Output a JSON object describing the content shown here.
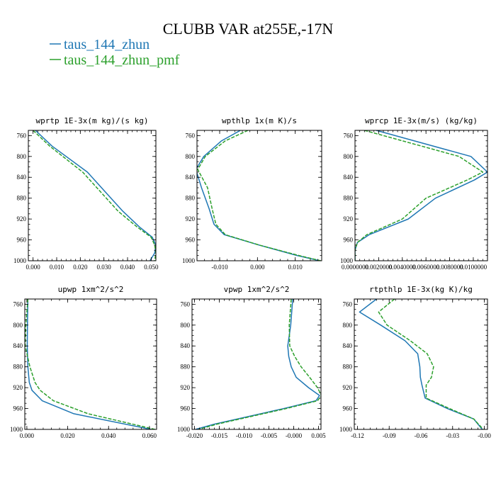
{
  "figure": {
    "title": "CLUBB VAR at255E,-17N",
    "legend": [
      {
        "name": "taus_144_zhun",
        "color": "#1f77b4",
        "dash": "solid"
      },
      {
        "name": "taus_144_zhun_pmf",
        "color": "#2ca02c",
        "dash": "dashed"
      }
    ]
  },
  "chart_data": [
    {
      "type": "line",
      "title": "wprtp  1E-3x(m kg)/(s kg)",
      "xlim": [
        -0.002,
        0.052
      ],
      "ylim": [
        1000,
        750
      ],
      "xticks": [
        0.0,
        0.01,
        0.02,
        0.03,
        0.04,
        0.05
      ],
      "xtick_labels": [
        "0.000",
        "0.010",
        "0.020",
        "0.030",
        "0.040",
        "0.050"
      ],
      "yticks": [
        760,
        800,
        840,
        880,
        920,
        960,
        1000
      ],
      "y": [
        750,
        780,
        830,
        870,
        905,
        935,
        955,
        970,
        985,
        1000
      ],
      "series": [
        {
          "name": "taus_144_zhun",
          "values": [
            0.001,
            0.008,
            0.023,
            0.031,
            0.038,
            0.045,
            0.0505,
            0.052,
            0.0515,
            0.0495
          ]
        },
        {
          "name": "taus_144_zhun_pmf",
          "values": [
            0.0,
            0.007,
            0.021,
            0.029,
            0.036,
            0.044,
            0.05,
            0.0515,
            0.052,
            0.0515
          ]
        }
      ]
    },
    {
      "type": "line",
      "title": "wpthlp  1x(m K)/s",
      "xlim": [
        -0.016,
        0.017
      ],
      "ylim": [
        1000,
        750
      ],
      "xticks": [
        -0.01,
        0.0,
        0.01
      ],
      "xtick_labels": [
        "-0.010",
        "0.000",
        "0.010"
      ],
      "yticks": [
        760,
        800,
        840,
        880,
        920,
        960,
        1000
      ],
      "y": [
        750,
        770,
        800,
        825,
        860,
        900,
        930,
        950,
        970,
        990,
        1000
      ],
      "series": [
        {
          "name": "taus_144_zhun",
          "values": [
            -0.0045,
            -0.0095,
            -0.0142,
            -0.0163,
            -0.0148,
            -0.0128,
            -0.0115,
            -0.0088,
            0.0005,
            0.0105,
            0.0165
          ]
        },
        {
          "name": "taus_144_zhun_pmf",
          "values": [
            -0.0025,
            -0.0085,
            -0.0138,
            -0.0158,
            -0.0132,
            -0.012,
            -0.011,
            -0.0085,
            0.0005,
            0.011,
            0.0168
          ]
        }
      ]
    },
    {
      "type": "line",
      "title": "wprcp  1E-3x(m/s) (kg/kg)",
      "xlim": [
        0.0,
        0.0112
      ],
      "ylim": [
        1000,
        750
      ],
      "xticks": [
        0.0,
        0.002,
        0.004,
        0.006,
        0.008,
        0.01
      ],
      "xtick_labels": [
        "0.0000000",
        "0.0020000",
        "0.0040000",
        "0.0060000",
        "0.0080000",
        "0.0100000"
      ],
      "yticks": [
        760,
        800,
        840,
        880,
        920,
        960,
        1000
      ],
      "y": [
        750,
        800,
        830,
        845,
        880,
        920,
        950,
        965,
        980,
        1000
      ],
      "series": [
        {
          "name": "taus_144_zhun",
          "values": [
            0.0018,
            0.0098,
            0.0112,
            0.0101,
            0.0068,
            0.0045,
            0.0012,
            0.0002,
            0.0,
            0.0
          ]
        },
        {
          "name": "taus_144_zhun_pmf",
          "values": [
            0.0008,
            0.0088,
            0.0108,
            0.0095,
            0.006,
            0.004,
            0.001,
            0.0002,
            0.0,
            0.0
          ]
        }
      ]
    },
    {
      "type": "line",
      "title": "upwp  1xm^2/s^2",
      "xlim": [
        -0.001,
        0.0635
      ],
      "ylim": [
        1000,
        750
      ],
      "xticks": [
        0.0,
        0.02,
        0.04,
        0.06
      ],
      "xtick_labels": [
        "0.000",
        "0.020",
        "0.040",
        "0.060"
      ],
      "yticks": [
        760,
        800,
        840,
        880,
        920,
        960,
        1000
      ],
      "y": [
        750,
        800,
        840,
        880,
        910,
        925,
        945,
        970,
        1000
      ],
      "series": [
        {
          "name": "taus_144_zhun",
          "values": [
            0.0005,
            0.0003,
            0.0002,
            0.0005,
            0.0012,
            0.0025,
            0.0075,
            0.023,
            0.0608
          ]
        },
        {
          "name": "taus_144_zhun_pmf",
          "values": [
            0.0005,
            -0.0005,
            -0.0008,
            0.0015,
            0.004,
            0.0065,
            0.013,
            0.03,
            0.0628
          ]
        }
      ]
    },
    {
      "type": "line",
      "title": "vpwp  1xm^2/s^2",
      "xlim": [
        -0.0205,
        0.0055
      ],
      "ylim": [
        1000,
        750
      ],
      "xticks": [
        -0.02,
        -0.015,
        -0.01,
        -0.005,
        0.0,
        0.005
      ],
      "xtick_labels": [
        "-0.020",
        "-0.015",
        "-0.010",
        "-0.005",
        "-0.000",
        "0.005"
      ],
      "yticks": [
        760,
        800,
        840,
        880,
        920,
        960,
        1000
      ],
      "y": [
        750,
        800,
        840,
        860,
        880,
        900,
        920,
        935,
        945,
        960,
        975,
        990,
        1000
      ],
      "series": [
        {
          "name": "taus_144_zhun",
          "values": [
            -0.0002,
            -0.0006,
            -0.0012,
            -0.001,
            -0.0005,
            0.0005,
            0.003,
            0.0052,
            0.0045,
            -0.002,
            -0.009,
            -0.016,
            -0.0198
          ]
        },
        {
          "name": "taus_144_zhun_pmf",
          "values": [
            -0.0005,
            -0.0009,
            -0.0008,
            0.0002,
            0.0015,
            0.0032,
            0.0048,
            0.0056,
            0.0048,
            -0.0015,
            -0.0085,
            -0.0155,
            -0.0192
          ]
        }
      ]
    },
    {
      "type": "line",
      "title": "rtpthlp  1E-3x(kg K)/kg",
      "xlim": [
        -0.123,
        0.003
      ],
      "ylim": [
        1000,
        750
      ],
      "xticks": [
        -0.12,
        -0.09,
        -0.06,
        -0.03,
        0.0
      ],
      "xtick_labels": [
        "-0.12",
        "-0.09",
        "-0.06",
        "-0.03",
        "-0.00"
      ],
      "yticks": [
        760,
        800,
        840,
        880,
        920,
        960,
        1000
      ],
      "y": [
        750,
        775,
        800,
        830,
        855,
        880,
        900,
        915,
        940,
        960,
        980,
        1000
      ],
      "series": [
        {
          "name": "taus_144_zhun",
          "values": [
            -0.102,
            -0.118,
            -0.098,
            -0.075,
            -0.063,
            -0.061,
            -0.0605,
            -0.059,
            -0.056,
            -0.035,
            -0.01,
            -0.002
          ]
        },
        {
          "name": "taus_144_zhun_pmf",
          "values": [
            -0.085,
            -0.1,
            -0.092,
            -0.07,
            -0.054,
            -0.048,
            -0.05,
            -0.055,
            -0.055,
            -0.033,
            -0.01,
            -0.001
          ]
        }
      ]
    }
  ]
}
